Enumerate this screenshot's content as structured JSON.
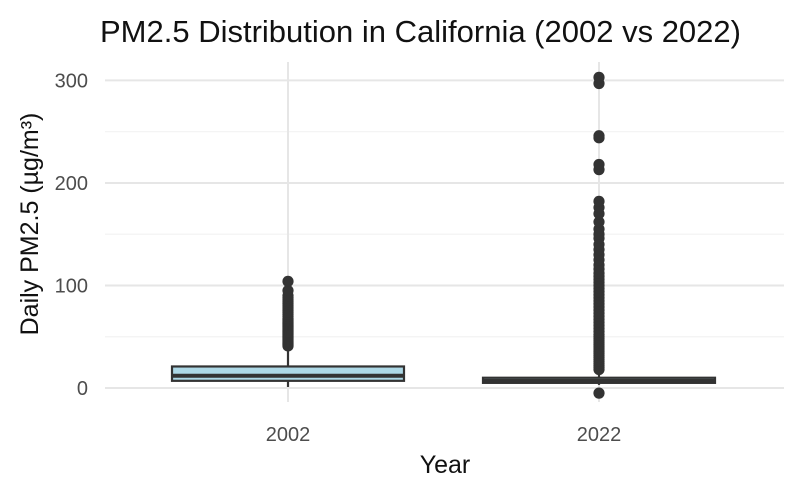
{
  "chart_data": {
    "type": "boxplot",
    "title": "PM2.5 Distribution in California (2002 vs 2022)",
    "xlabel": "Year",
    "ylabel": "Daily PM2.5 (µg/m³)",
    "categories": [
      "2002",
      "2022"
    ],
    "ylim": [
      -12,
      310
    ],
    "yticks": [
      0,
      100,
      200,
      300
    ],
    "grid": true,
    "boxes": [
      {
        "category": "2002",
        "fill": "#add8e6",
        "min": 1,
        "q1": 7,
        "median": 12,
        "q3": 21,
        "whisker_high": 40,
        "outliers": [
          41,
          42,
          43,
          44,
          45,
          46,
          47,
          48,
          49,
          50,
          51,
          52,
          53,
          54,
          55,
          56,
          57,
          58,
          59,
          60,
          61,
          62,
          63,
          64,
          65,
          66,
          67,
          68,
          70,
          72,
          74,
          76,
          78,
          80,
          82,
          84,
          86,
          88,
          90,
          95,
          104
        ]
      },
      {
        "category": "2022",
        "fill": "#add8e6",
        "min": 3,
        "q1": 5,
        "median": 7,
        "q3": 10,
        "whisker_high": 17,
        "outliers": [
          -5,
          18,
          20,
          22,
          24,
          26,
          28,
          30,
          32,
          34,
          36,
          38,
          40,
          42,
          44,
          46,
          48,
          50,
          52,
          55,
          58,
          61,
          64,
          67,
          70,
          73,
          76,
          79,
          82,
          85,
          88,
          91,
          94,
          97,
          100,
          103,
          106,
          109,
          112,
          116,
          120,
          125,
          130,
          135,
          140,
          146,
          150,
          155,
          162,
          170,
          176,
          182,
          213,
          218,
          244,
          246,
          297,
          303
        ]
      }
    ]
  }
}
